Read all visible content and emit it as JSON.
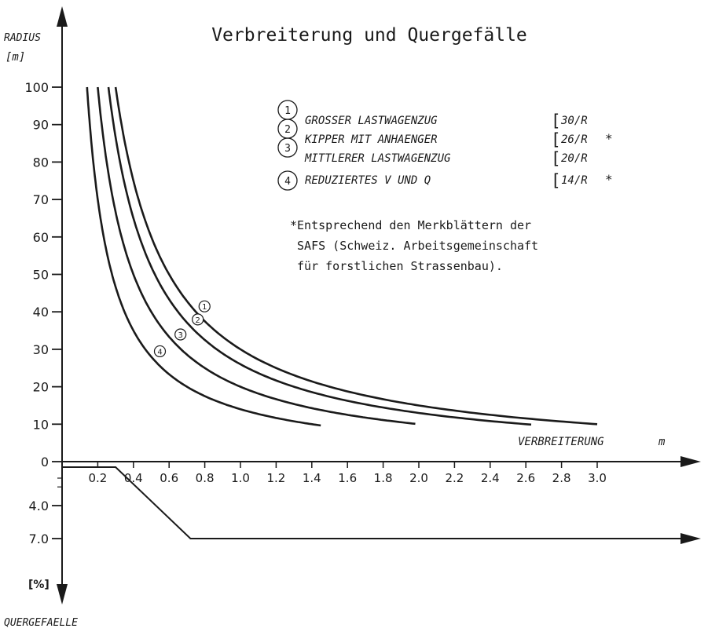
{
  "chart_data": {
    "type": "line",
    "title": "Verbreiterung und Quergefälle",
    "y_axis": {
      "label": "RADIUS",
      "unit": "[m]",
      "ticks": [
        0,
        10,
        20,
        30,
        40,
        50,
        60,
        70,
        80,
        90,
        100
      ],
      "range": [
        0,
        100
      ]
    },
    "x_axis": {
      "label": "VERBREITERUNG",
      "unit": "m",
      "ticks": [
        "0.2",
        "0.4",
        "0.6",
        "0.8",
        "1.0",
        "1.2",
        "1.4",
        "1.6",
        "1.8",
        "2.0",
        "2.2",
        "2.4",
        "2.6",
        "2.8",
        "3.0"
      ],
      "range": [
        0,
        3.2
      ]
    },
    "lower_axis": {
      "label": "QUERGEFAELLE",
      "unit": "[%]",
      "ticks": [
        "4.0",
        "7.0"
      ]
    },
    "series": [
      {
        "marker": "1",
        "name": "GROSSER LASTWAGENZUG",
        "formula": "30/R",
        "note": "",
        "k": 30,
        "x_range": [
          0.3,
          3.0
        ]
      },
      {
        "marker": "2",
        "name": "KIPPER MIT ANHAENGER",
        "formula": "26/R",
        "note": "*",
        "k": 26,
        "x_range": [
          0.26,
          2.63
        ]
      },
      {
        "marker": "3",
        "name": "MITTLERER LASTWAGENZUG",
        "formula": "20/R",
        "note": "",
        "k": 20,
        "x_range": [
          0.2,
          1.98
        ]
      },
      {
        "marker": "4",
        "name": "REDUZIERTES V UND Q",
        "formula": "14/R",
        "note": "*",
        "k": 14,
        "x_range": [
          0.14,
          1.45
        ]
      }
    ],
    "quergefaelle": {
      "x": [
        0,
        0.3,
        0.72,
        3.4
      ],
      "y": [
        0.5,
        0.5,
        7.0,
        7.0
      ]
    },
    "footnote": [
      "*Entsprechend den Merkblättern der",
      " SAFS (Schweiz. Arbeitsgemeinschaft",
      " für forstlichen Strassenbau)."
    ]
  }
}
